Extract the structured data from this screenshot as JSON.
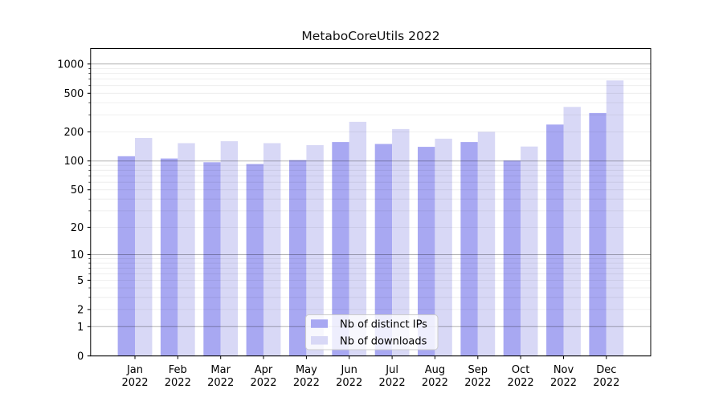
{
  "chart_data": {
    "type": "bar",
    "title": "MetaboCoreUtils 2022",
    "xlabel": "",
    "ylabel": "",
    "categories": [
      "Jan 2022",
      "Feb 2022",
      "Mar 2022",
      "Apr 2022",
      "May 2022",
      "Jun 2022",
      "Jul 2022",
      "Aug 2022",
      "Sep 2022",
      "Oct 2022",
      "Nov 2022",
      "Dec 2022"
    ],
    "series": [
      {
        "name": "Nb of distinct IPs",
        "color": "#a8a8f2",
        "values": [
          112,
          106,
          97,
          93,
          102,
          157,
          150,
          140,
          157,
          101,
          238,
          313
        ]
      },
      {
        "name": "Nb of downloads",
        "color": "#d8d8f6",
        "values": [
          173,
          153,
          160,
          153,
          146,
          254,
          214,
          170,
          200,
          141,
          362,
          678
        ]
      }
    ],
    "y_axis": {
      "scale": "log1p",
      "ticks_labeled": [
        0,
        1,
        2,
        5,
        10,
        20,
        50,
        100,
        200,
        500,
        1000
      ],
      "gridlines_major": [
        1,
        10,
        100,
        1000
      ],
      "gridlines_minor": [
        2,
        3,
        4,
        5,
        6,
        7,
        8,
        9,
        20,
        30,
        40,
        50,
        60,
        70,
        80,
        90,
        200,
        300,
        400,
        500,
        600,
        700,
        800,
        900
      ],
      "ylim": [
        0,
        1400
      ]
    },
    "grid": true,
    "legend": {
      "position": "lower center",
      "entries": [
        "Nb of distinct IPs",
        "Nb of downloads"
      ]
    },
    "colors": {
      "distinct_ips_bar": "#a8a8f2",
      "downloads_bar": "#d8d8f6",
      "major_gridline": "#b3b3b3",
      "minor_gridline": "#ebebeb",
      "axis": "#000000",
      "legend_frame": "#cccccc",
      "background": "#ffffff"
    }
  }
}
